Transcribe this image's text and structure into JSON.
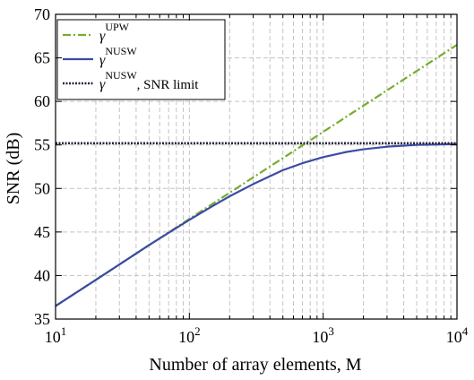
{
  "chart_data": {
    "type": "line",
    "xscale": "log",
    "xlim": [
      10,
      10000
    ],
    "ylim": [
      35,
      70
    ],
    "grid": true,
    "legend_position": "top-left",
    "xlabel": "Number of array elements, M",
    "ylabel": "SNR (dB)",
    "x_ticks": [
      {
        "value": 10,
        "base": "10",
        "exp": "1"
      },
      {
        "value": 100,
        "base": "10",
        "exp": "2"
      },
      {
        "value": 1000,
        "base": "10",
        "exp": "3"
      },
      {
        "value": 10000,
        "base": "10",
        "exp": "4"
      }
    ],
    "y_ticks": [
      "35",
      "40",
      "45",
      "50",
      "55",
      "60",
      "65",
      "70"
    ],
    "series": [
      {
        "name": "γ^UPW",
        "legend_main": "γ",
        "legend_sup": "UPW",
        "legend_suffix": "",
        "color": "#77ac30",
        "style": "dashdot",
        "x": [
          10,
          100,
          1000,
          10000
        ],
        "y": [
          36.5,
          46.5,
          56.5,
          66.5
        ]
      },
      {
        "name": "γ^NUSW",
        "legend_main": "γ",
        "legend_sup": "NUSW",
        "legend_suffix": "",
        "color": "#3c4ba3",
        "style": "solid",
        "x": [
          10,
          20,
          50,
          100,
          150,
          200,
          300,
          500,
          700,
          1000,
          1500,
          2000,
          3000,
          5000,
          7000,
          10000
        ],
        "y": [
          36.5,
          39.5,
          43.5,
          46.4,
          48.0,
          49.1,
          50.5,
          52.1,
          52.9,
          53.6,
          54.2,
          54.5,
          54.8,
          55.0,
          55.05,
          55.1
        ]
      },
      {
        "name": "γ^NUSW, SNR limit",
        "legend_main": "γ",
        "legend_sup": "NUSW",
        "legend_suffix": ", SNR limit",
        "color": "#23233a",
        "style": "dotted",
        "x": [
          10,
          10000
        ],
        "y": [
          55.2,
          55.2
        ]
      }
    ]
  }
}
